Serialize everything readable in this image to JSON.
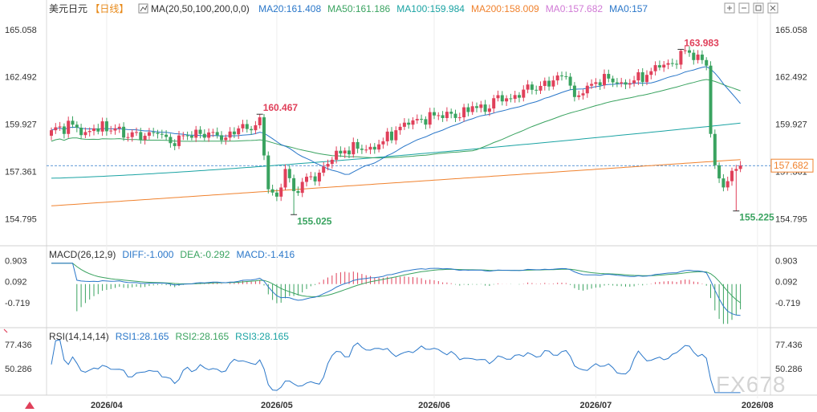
{
  "header": {
    "symbol": "美元日元",
    "period": "【日线】",
    "ma_label": "MA(20,50,100,200,0,0)",
    "ma_values": [
      {
        "text": "MA20:161.408",
        "color": "#2a77c9"
      },
      {
        "text": "MA50:161.186",
        "color": "#3aa360"
      },
      {
        "text": "MA100:159.984",
        "color": "#1aa3a3"
      },
      {
        "text": "MA200:158.009",
        "color": "#f0822e"
      },
      {
        "text": "MA0:157.682",
        "color": "#d17ad6"
      },
      {
        "text": "MA0:157",
        "color": "#2a77c9"
      }
    ]
  },
  "toolbar": {
    "icons": [
      "zoom-in-icon",
      "zoom-out-icon",
      "restore-icon",
      "close-icon"
    ]
  },
  "chart_data": [
    {
      "type": "candlestick",
      "name": "美元日元",
      "y_ticks": [
        "165.058",
        "162.492",
        "159.927",
        "157.361",
        "154.795"
      ],
      "y_tick_values": [
        165.058,
        162.492,
        159.927,
        157.361,
        154.795
      ],
      "ylim": [
        153.6,
        165.7
      ],
      "current_price": "157.682",
      "current_price_value": 157.682,
      "annotations": [
        {
          "text": "160.467",
          "value": 160.467,
          "index": 49,
          "color": "#e0405a"
        },
        {
          "text": "155.025",
          "value": 155.025,
          "index": 57,
          "color": "#3aa360"
        },
        {
          "text": "163.983",
          "value": 163.983,
          "index": 148,
          "color": "#e0405a"
        },
        {
          "text": "155.225",
          "value": 155.225,
          "index": 161,
          "color": "#3aa360"
        }
      ],
      "x_ticks": [
        {
          "label": "2026/04",
          "index": 13
        },
        {
          "label": "2026/05",
          "index": 53
        },
        {
          "label": "2026/06",
          "index": 90
        },
        {
          "label": "2026/07",
          "index": 128
        },
        {
          "label": "2026/08",
          "index": 166
        }
      ],
      "anchors_close": [
        [
          0,
          159.6
        ],
        [
          5,
          159.9
        ],
        [
          8,
          159.5
        ],
        [
          10,
          159.7
        ],
        [
          15,
          159.7
        ],
        [
          17,
          159.2
        ],
        [
          20,
          159.5
        ],
        [
          22,
          159.3
        ],
        [
          25,
          159.4
        ],
        [
          28,
          158.9
        ],
        [
          32,
          159.3
        ],
        [
          35,
          159.4
        ],
        [
          38,
          159.5
        ],
        [
          41,
          159.2
        ],
        [
          44,
          159.7
        ],
        [
          47,
          159.6
        ],
        [
          49,
          160.3
        ],
        [
          51,
          156.4
        ],
        [
          53,
          156.0
        ],
        [
          55,
          157.5
        ],
        [
          57,
          156.3
        ],
        [
          59,
          156.8
        ],
        [
          61,
          157.1
        ],
        [
          63,
          157.3
        ],
        [
          66,
          158.0
        ],
        [
          69,
          158.5
        ],
        [
          72,
          158.6
        ],
        [
          75,
          158.7
        ],
        [
          78,
          159.0
        ],
        [
          81,
          159.6
        ],
        [
          84,
          159.9
        ],
        [
          87,
          160.2
        ],
        [
          90,
          160.4
        ],
        [
          93,
          160.6
        ],
        [
          96,
          160.3
        ],
        [
          99,
          160.9
        ],
        [
          102,
          160.6
        ],
        [
          105,
          161.5
        ],
        [
          108,
          161.3
        ],
        [
          111,
          161.8
        ],
        [
          115,
          162.0
        ],
        [
          118,
          162.3
        ],
        [
          121,
          162.5
        ],
        [
          123,
          161.4
        ],
        [
          125,
          161.6
        ],
        [
          128,
          162.2
        ],
        [
          131,
          162.4
        ],
        [
          134,
          162.2
        ],
        [
          137,
          162.3
        ],
        [
          140,
          162.6
        ],
        [
          143,
          163.0
        ],
        [
          146,
          163.2
        ],
        [
          148,
          163.9
        ],
        [
          150,
          163.8
        ],
        [
          152,
          163.7
        ],
        [
          154,
          163.1
        ],
        [
          155,
          159.4
        ],
        [
          156,
          157.7
        ],
        [
          158,
          156.5
        ],
        [
          160,
          157.4
        ],
        [
          161,
          157.5
        ],
        [
          162,
          157.682
        ]
      ],
      "ma200_start": 155.5,
      "ma200_end": 158.009,
      "ma100_end": 159.984,
      "ma50_end": 161.186,
      "ma20_end": 161.408
    },
    {
      "type": "line",
      "name": "MACD(26,12,9)",
      "legend": [
        {
          "text": "MACD(26,12,9)",
          "color": "#333333"
        },
        {
          "text": "DIFF:-1.000",
          "color": "#2a77c9"
        },
        {
          "text": "DEA:-0.292",
          "color": "#3aa360"
        },
        {
          "text": "MACD:-1.416",
          "color": "#2a77c9"
        }
      ],
      "y_ticks": [
        "0.903",
        "0.092",
        "-0.719"
      ],
      "y_tick_values": [
        0.903,
        0.092,
        -0.719
      ],
      "ylim": [
        -1.55,
        1.1
      ]
    },
    {
      "type": "line",
      "name": "RSI(14,14,14)",
      "legend": [
        {
          "text": "RSI(14,14,14)",
          "color": "#333333"
        },
        {
          "text": "RSI1:28.165",
          "color": "#2a77c9"
        },
        {
          "text": "RSI2:28.165",
          "color": "#3aa360"
        },
        {
          "text": "RSI3:28.165",
          "color": "#1aa3a3"
        }
      ],
      "y_ticks": [
        "77.436",
        "50.286"
      ],
      "y_tick_values": [
        77.436,
        50.286
      ],
      "ylim": [
        22,
        84
      ]
    }
  ],
  "watermark": "FX678"
}
